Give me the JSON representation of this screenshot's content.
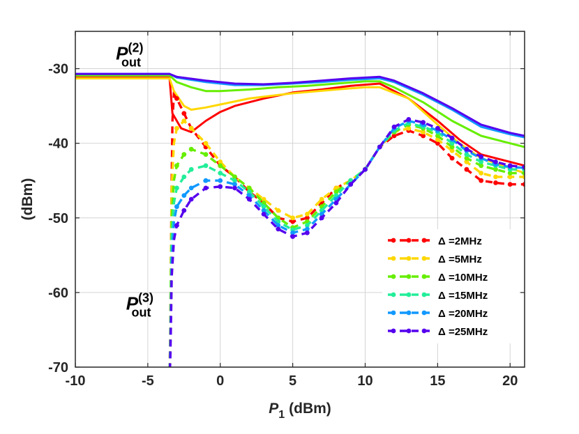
{
  "chart_data": {
    "type": "line",
    "title": "",
    "xlabel_symbol": "P",
    "xlabel_sub": "1",
    "xlabel_unit": "(dBm)",
    "ylabel": "(dBm)",
    "xlim": [
      -10,
      21
    ],
    "ylim": [
      -70,
      -25
    ],
    "xticks": [
      -10,
      -5,
      0,
      5,
      10,
      15,
      20
    ],
    "yticks": [
      -70,
      -60,
      -50,
      -40,
      -30
    ],
    "xtick_labels": [
      "-10",
      "-5",
      "0",
      "5",
      "10",
      "15",
      "20"
    ],
    "ytick_labels": [
      "-70",
      "-60",
      "-50",
      "-40",
      "-30"
    ],
    "grid": true,
    "legend_position": "bottom-right",
    "annotations": [
      {
        "name": "pout2-annotation",
        "symbol": "P",
        "sub": "out",
        "sup": "(2)",
        "x": -7.2,
        "y": -28.8
      },
      {
        "name": "pout3-annotation",
        "symbol": "P",
        "sub": "out",
        "sup": "(3)",
        "x": -6.5,
        "y": -62.3
      }
    ],
    "series": [
      {
        "name": "Δ =2MHz",
        "legend_label": "Δ =2MHz",
        "color": "#ff0000",
        "pout2": [
          [
            -10,
            -31.2
          ],
          [
            -3.5,
            -31.2
          ],
          [
            -3.3,
            -36
          ],
          [
            -2.7,
            -38
          ],
          [
            -2,
            -38.5
          ],
          [
            -1,
            -37
          ],
          [
            0,
            -35.8
          ],
          [
            1,
            -35
          ],
          [
            3,
            -34
          ],
          [
            5,
            -33.2
          ],
          [
            7,
            -32.8
          ],
          [
            9,
            -32.3
          ],
          [
            11,
            -32
          ],
          [
            13,
            -34
          ],
          [
            15,
            -37
          ],
          [
            16.5,
            -39.5
          ],
          [
            18,
            -41.5
          ],
          [
            21,
            -43
          ]
        ],
        "pout3": [
          [
            -3.5,
            -72
          ],
          [
            -3.45,
            -65
          ],
          [
            -3.4,
            -55
          ],
          [
            -3.35,
            -45
          ],
          [
            -3.3,
            -37
          ],
          [
            -3.2,
            -33.5
          ],
          [
            -3,
            -34
          ],
          [
            -2.5,
            -36
          ],
          [
            -2,
            -38
          ],
          [
            -1,
            -40.5
          ],
          [
            0,
            -43
          ],
          [
            1,
            -44.5
          ],
          [
            2,
            -46.5
          ],
          [
            3,
            -48
          ],
          [
            4,
            -50
          ],
          [
            5,
            -50.5
          ],
          [
            6,
            -50
          ],
          [
            7,
            -48
          ],
          [
            8,
            -46
          ],
          [
            9,
            -45
          ],
          [
            10,
            -43.5
          ],
          [
            11,
            -40.5
          ],
          [
            12,
            -39
          ],
          [
            13,
            -38.3
          ],
          [
            14,
            -39
          ],
          [
            15,
            -40
          ],
          [
            16,
            -42
          ],
          [
            17,
            -43.5
          ],
          [
            18,
            -45
          ],
          [
            19,
            -45.3
          ],
          [
            20,
            -45.5
          ],
          [
            21,
            -45.5
          ]
        ]
      },
      {
        "name": "Δ =5MHz",
        "legend_label": "Δ =5MHz",
        "color": "#ffd700",
        "pout2": [
          [
            -10,
            -31.3
          ],
          [
            -3.5,
            -31.3
          ],
          [
            -3.2,
            -33
          ],
          [
            -2.5,
            -35
          ],
          [
            -2,
            -35.5
          ],
          [
            -1,
            -35.2
          ],
          [
            0,
            -34.8
          ],
          [
            2,
            -34
          ],
          [
            5,
            -33.3
          ],
          [
            8,
            -32.8
          ],
          [
            10,
            -32.5
          ],
          [
            11,
            -32.5
          ],
          [
            13,
            -34
          ],
          [
            15,
            -37.5
          ],
          [
            16.5,
            -40
          ],
          [
            18,
            -42
          ],
          [
            21,
            -44
          ]
        ],
        "pout3": [
          [
            -3.5,
            -72
          ],
          [
            -3.45,
            -65
          ],
          [
            -3.4,
            -55
          ],
          [
            -3.35,
            -46
          ],
          [
            -3.2,
            -40
          ],
          [
            -3,
            -38
          ],
          [
            -2.5,
            -37
          ],
          [
            -2,
            -38
          ],
          [
            -1,
            -40
          ],
          [
            0,
            -42.5
          ],
          [
            1,
            -44.5
          ],
          [
            2,
            -46
          ],
          [
            3,
            -47.5
          ],
          [
            4,
            -49
          ],
          [
            5,
            -50
          ],
          [
            6,
            -49.5
          ],
          [
            7,
            -47.5
          ],
          [
            8,
            -46
          ],
          [
            9,
            -45
          ],
          [
            10,
            -43.5
          ],
          [
            11,
            -40.5
          ],
          [
            12,
            -38.5
          ],
          [
            13,
            -38
          ],
          [
            14,
            -38.5
          ],
          [
            15,
            -39.5
          ],
          [
            16,
            -41
          ],
          [
            17,
            -42.5
          ],
          [
            18,
            -44
          ],
          [
            19,
            -44.5
          ],
          [
            20,
            -44.5
          ],
          [
            21,
            -44.5
          ]
        ]
      },
      {
        "name": "Δ =10MHz",
        "legend_label": "Δ =10MHz",
        "color": "#66ee00",
        "pout2": [
          [
            -10,
            -30.9
          ],
          [
            -3.5,
            -30.9
          ],
          [
            -3,
            -31.8
          ],
          [
            -2,
            -32.5
          ],
          [
            -1,
            -33
          ],
          [
            0,
            -33
          ],
          [
            2,
            -32.8
          ],
          [
            4,
            -32.5
          ],
          [
            6,
            -32.3
          ],
          [
            8,
            -32
          ],
          [
            10,
            -31.7
          ],
          [
            11,
            -31.7
          ],
          [
            12,
            -32.5
          ],
          [
            14,
            -34.5
          ],
          [
            16,
            -37
          ],
          [
            18,
            -39
          ],
          [
            20,
            -40
          ],
          [
            21,
            -40.5
          ]
        ],
        "pout3": [
          [
            -3.5,
            -72
          ],
          [
            -3.45,
            -66
          ],
          [
            -3.4,
            -57
          ],
          [
            -3.35,
            -50
          ],
          [
            -3.2,
            -45
          ],
          [
            -3,
            -43
          ],
          [
            -2.5,
            -41.5
          ],
          [
            -2,
            -40.8
          ],
          [
            -1,
            -41.5
          ],
          [
            0,
            -43
          ],
          [
            1,
            -44.5
          ],
          [
            2,
            -46
          ],
          [
            3,
            -48
          ],
          [
            4,
            -50
          ],
          [
            5,
            -51.3
          ],
          [
            6,
            -50.5
          ],
          [
            7,
            -48.5
          ],
          [
            8,
            -46.5
          ],
          [
            9,
            -45
          ],
          [
            10,
            -43.5
          ],
          [
            11,
            -40.5
          ],
          [
            12,
            -38.5
          ],
          [
            13,
            -37.5
          ],
          [
            14,
            -38
          ],
          [
            15,
            -39
          ],
          [
            16,
            -40.5
          ],
          [
            17,
            -42
          ],
          [
            18,
            -43
          ],
          [
            19,
            -43.5
          ],
          [
            20,
            -44
          ],
          [
            21,
            -44
          ]
        ]
      },
      {
        "name": "Δ =15MHz",
        "legend_label": "Δ =15MHz",
        "color": "#22ee99",
        "pout2": [],
        "pout3": [
          [
            -3.5,
            -72
          ],
          [
            -3.45,
            -67
          ],
          [
            -3.4,
            -60
          ],
          [
            -3.35,
            -53
          ],
          [
            -3.2,
            -48
          ],
          [
            -3,
            -46
          ],
          [
            -2.5,
            -44.5
          ],
          [
            -2,
            -43.5
          ],
          [
            -1,
            -43
          ],
          [
            0,
            -44
          ],
          [
            1,
            -45
          ],
          [
            2,
            -46.5
          ],
          [
            3,
            -48.5
          ],
          [
            4,
            -50.5
          ],
          [
            5,
            -51.6
          ],
          [
            6,
            -51
          ],
          [
            7,
            -49
          ],
          [
            8,
            -47
          ],
          [
            9,
            -45
          ],
          [
            10,
            -43.5
          ],
          [
            11,
            -40.5
          ],
          [
            12,
            -38.3
          ],
          [
            13,
            -37.3
          ],
          [
            14,
            -37.8
          ],
          [
            15,
            -38.5
          ],
          [
            16,
            -40
          ],
          [
            17,
            -41.5
          ],
          [
            18,
            -42.5
          ],
          [
            19,
            -43
          ],
          [
            20,
            -43.5
          ],
          [
            21,
            -43.5
          ]
        ]
      },
      {
        "name": "Δ =20MHz",
        "legend_label": "Δ =20MHz",
        "color": "#1199ff",
        "pout2": [
          [
            -10,
            -30.7
          ],
          [
            -3.5,
            -30.7
          ],
          [
            -3,
            -31.2
          ],
          [
            -1,
            -31.8
          ],
          [
            1,
            -32.2
          ],
          [
            3,
            -32.2
          ],
          [
            5,
            -32
          ],
          [
            7,
            -31.8
          ],
          [
            9,
            -31.5
          ],
          [
            11,
            -31.3
          ],
          [
            12,
            -31.8
          ],
          [
            14,
            -33.5
          ],
          [
            16,
            -35.5
          ],
          [
            18,
            -37.8
          ],
          [
            20,
            -38.8
          ],
          [
            21,
            -39.2
          ]
        ],
        "pout3": [
          [
            -3.5,
            -72
          ],
          [
            -3.45,
            -68
          ],
          [
            -3.4,
            -62
          ],
          [
            -3.35,
            -56
          ],
          [
            -3.2,
            -50.5
          ],
          [
            -3,
            -48.5
          ],
          [
            -2.5,
            -47
          ],
          [
            -2,
            -46
          ],
          [
            -1,
            -45
          ],
          [
            0,
            -45
          ],
          [
            1,
            -45.5
          ],
          [
            2,
            -47
          ],
          [
            3,
            -49
          ],
          [
            4,
            -51
          ],
          [
            5,
            -52
          ],
          [
            6,
            -51.5
          ],
          [
            7,
            -49.5
          ],
          [
            8,
            -47.5
          ],
          [
            9,
            -45.5
          ],
          [
            10,
            -43.5
          ],
          [
            11,
            -40.5
          ],
          [
            12,
            -38
          ],
          [
            13,
            -37
          ],
          [
            14,
            -37.5
          ],
          [
            15,
            -38.3
          ],
          [
            16,
            -39.5
          ],
          [
            17,
            -41
          ],
          [
            18,
            -42
          ],
          [
            19,
            -42.8
          ],
          [
            20,
            -43.2
          ],
          [
            21,
            -43.3
          ]
        ]
      },
      {
        "name": "Δ =25MHz",
        "legend_label": "Δ =25MHz",
        "color": "#5500ee",
        "pout2": [
          [
            -10,
            -30.7
          ],
          [
            -3.5,
            -30.7
          ],
          [
            -3,
            -31.1
          ],
          [
            -1,
            -31.6
          ],
          [
            1,
            -32
          ],
          [
            3,
            -32.1
          ],
          [
            5,
            -31.9
          ],
          [
            7,
            -31.6
          ],
          [
            9,
            -31.3
          ],
          [
            11,
            -31.1
          ],
          [
            12,
            -31.6
          ],
          [
            14,
            -33.3
          ],
          [
            16,
            -35.3
          ],
          [
            18,
            -37.5
          ],
          [
            20,
            -38.6
          ],
          [
            21,
            -39
          ]
        ],
        "pout3": [
          [
            -3.5,
            -72
          ],
          [
            -3.45,
            -69
          ],
          [
            -3.4,
            -64
          ],
          [
            -3.35,
            -58
          ],
          [
            -3.2,
            -53
          ],
          [
            -3,
            -51
          ],
          [
            -2.5,
            -49
          ],
          [
            -2,
            -47.5
          ],
          [
            -1,
            -46
          ],
          [
            0,
            -45.8
          ],
          [
            1,
            -46
          ],
          [
            2,
            -47.5
          ],
          [
            3,
            -49.5
          ],
          [
            4,
            -51.5
          ],
          [
            5,
            -52.5
          ],
          [
            6,
            -52
          ],
          [
            7,
            -50
          ],
          [
            8,
            -48
          ],
          [
            9,
            -45.5
          ],
          [
            10,
            -43.5
          ],
          [
            11,
            -40.5
          ],
          [
            12,
            -37.8
          ],
          [
            13,
            -36.8
          ],
          [
            14,
            -37.2
          ],
          [
            15,
            -38
          ],
          [
            16,
            -39.3
          ],
          [
            17,
            -40.8
          ],
          [
            18,
            -41.8
          ],
          [
            19,
            -42.5
          ],
          [
            20,
            -43
          ],
          [
            21,
            -43.2
          ]
        ]
      }
    ]
  }
}
